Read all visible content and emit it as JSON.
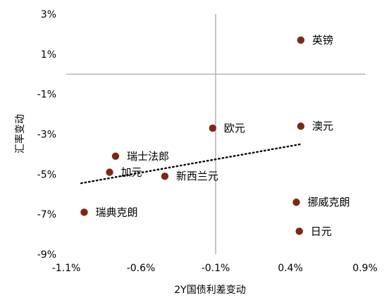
{
  "chart_data": {
    "type": "scatter",
    "title": "",
    "xlabel": "2Y国债利差变动",
    "ylabel": "汇率变动",
    "xlim": [
      -1.1,
      0.9
    ],
    "ylim": [
      -9,
      3
    ],
    "x_ticks": [
      -1.1,
      -0.6,
      -0.1,
      0.4,
      0.9
    ],
    "y_ticks": [
      3,
      1,
      -1,
      -3,
      -5,
      -7,
      -9
    ],
    "x_tick_labels": [
      "-1.1%",
      "-0.6%",
      "-0.1%",
      "0.4%",
      "0.9%"
    ],
    "y_tick_labels": [
      "3%",
      "1%",
      "-1%",
      "-3%",
      "-5%",
      "-7%",
      "-9%"
    ],
    "grid": false,
    "legend": "none",
    "marker_color": "#7b2a12",
    "reference_lines": {
      "x": -0.1,
      "y": 0,
      "color": "#a6a6a6"
    },
    "trendline": {
      "style": "dotted",
      "color": "#000000",
      "x_start": -1.0,
      "x_end": 0.47,
      "y_start": -5.45,
      "y_end": -3.5
    },
    "points": [
      {
        "name": "英镑",
        "x": 0.47,
        "y": 1.7
      },
      {
        "name": "澳元",
        "x": 0.47,
        "y": -2.6
      },
      {
        "name": "欧元",
        "x": -0.12,
        "y": -2.7
      },
      {
        "name": "瑞士法郎",
        "x": -0.77,
        "y": -4.1
      },
      {
        "name": "加元",
        "x": -0.81,
        "y": -4.9
      },
      {
        "name": "新西兰元",
        "x": -0.44,
        "y": -5.1
      },
      {
        "name": "挪威克朗",
        "x": 0.44,
        "y": -6.4
      },
      {
        "name": "日元",
        "x": 0.46,
        "y": -7.85
      },
      {
        "name": "瑞典克朗",
        "x": -0.98,
        "y": -6.9
      }
    ]
  }
}
